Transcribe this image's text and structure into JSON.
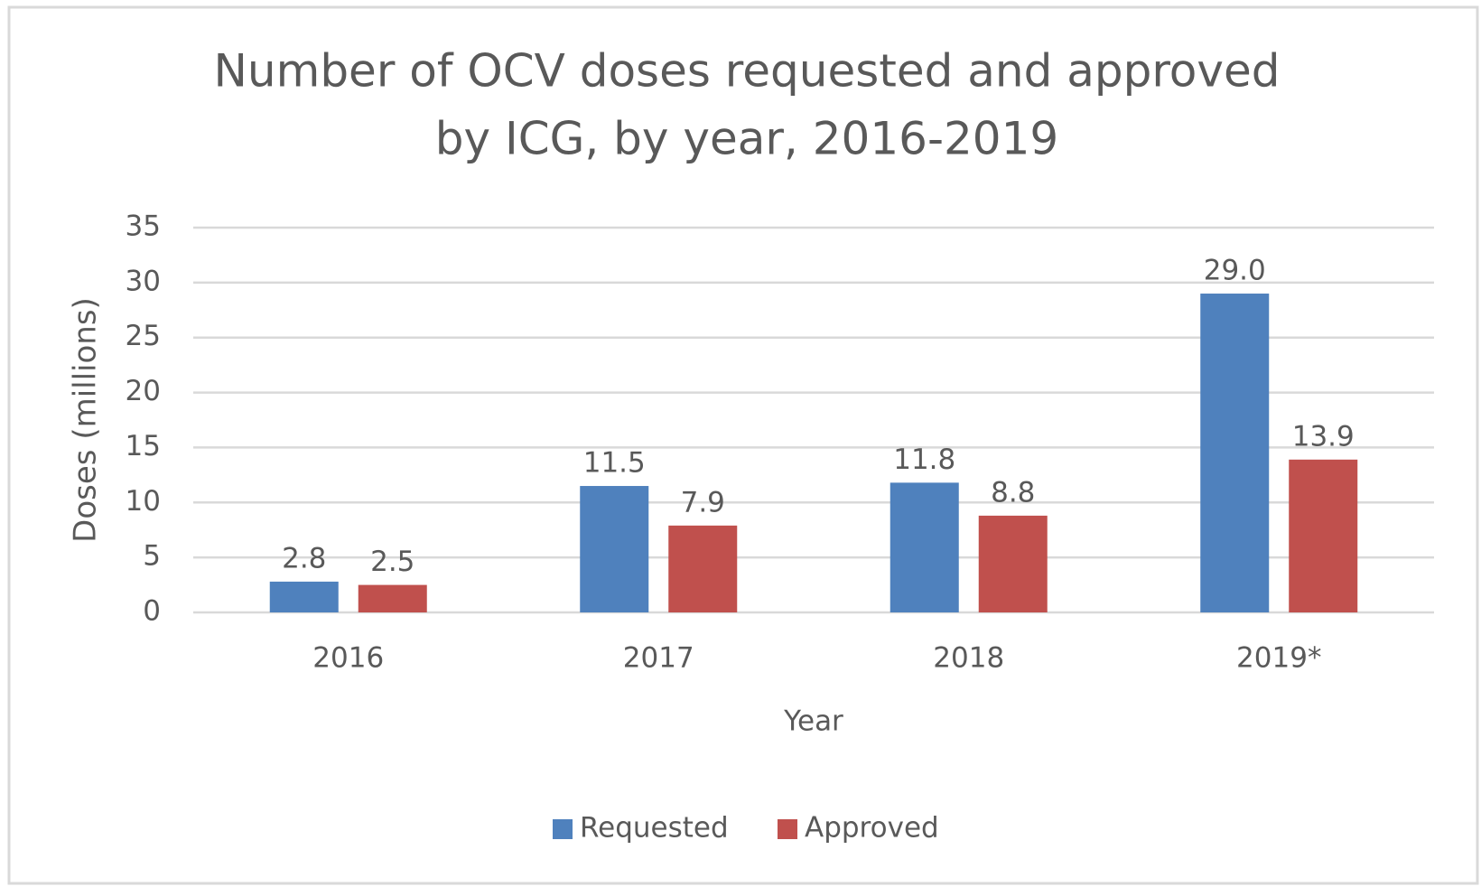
{
  "chart_data": {
    "type": "bar",
    "title": [
      "Number of OCV doses requested and approved",
      "by ICG, by year, 2016-2019"
    ],
    "x_label": "Year",
    "y_label": "Doses (millions)",
    "categories": [
      "2016",
      "2017",
      "2018",
      "2019*"
    ],
    "series": [
      {
        "name": "Requested",
        "color": "#4f81bd",
        "values": [
          2.8,
          11.5,
          11.8,
          29
        ],
        "value_labels": [
          "2.8",
          "11.5",
          "11.8",
          "29.0"
        ]
      },
      {
        "name": "Approved",
        "color": "#c0504d",
        "values": [
          2.5,
          7.9,
          8.8,
          13.9
        ],
        "value_labels": [
          "2.5",
          "7.9",
          "8.8",
          "13.9"
        ]
      }
    ],
    "ylim": [
      0,
      35
    ],
    "yticks": [
      0,
      5,
      10,
      15,
      20,
      25,
      30,
      35
    ],
    "grid": true,
    "legend": "bottom"
  }
}
